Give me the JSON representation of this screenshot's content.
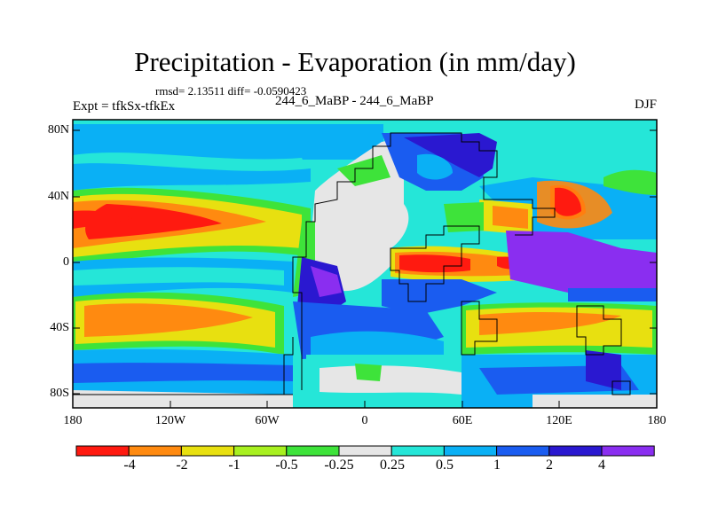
{
  "title": "Precipitation - Evaporation (in mm/day)",
  "stats": "rmsd= 2.13511 diff= -0.0590423",
  "experiment": "Expt = tfkSx-tfkEx",
  "period": "244_6_MaBP - 244_6_MaBP",
  "season": "DJF",
  "y_ticks": [
    "80N",
    "40N",
    "0",
    "40S",
    "80S"
  ],
  "x_ticks": [
    "180",
    "120W",
    "60W",
    "0",
    "60E",
    "120E",
    "180"
  ],
  "colorbar": {
    "labels": [
      "-4",
      "-2",
      "-1",
      "-0.5",
      "-0.25",
      "0.25",
      "0.5",
      "1",
      "2",
      "4"
    ],
    "colors": [
      "#ff1a10",
      "#ff8a10",
      "#e8e010",
      "#a8f020",
      "#3ee33a",
      "#e6e6e6",
      "#25e6d8",
      "#0ab0f5",
      "#1a5cf0",
      "#2a18d0",
      "#8a2ef0"
    ]
  }
}
